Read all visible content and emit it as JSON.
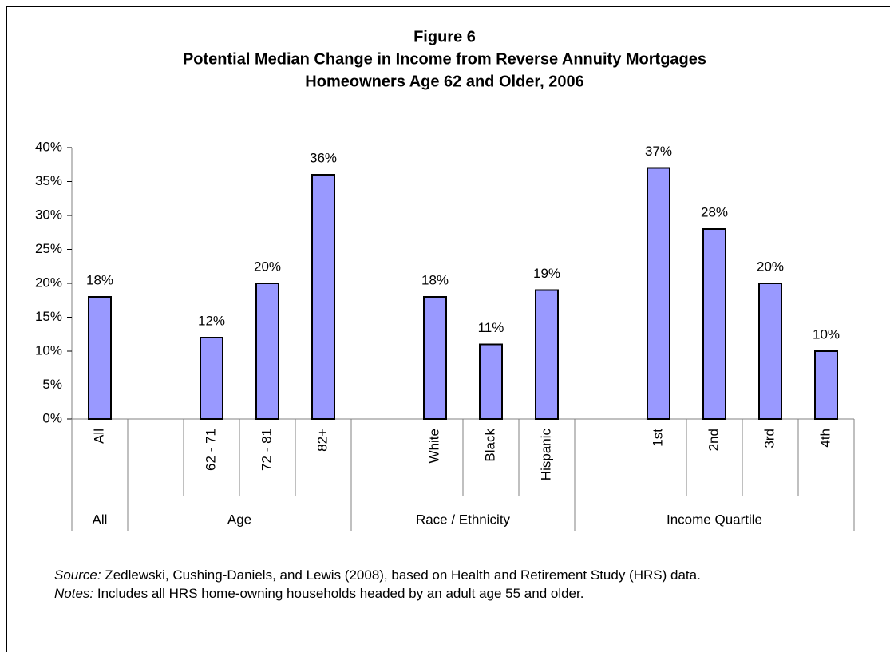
{
  "chart_data": {
    "type": "bar",
    "title": "Figure 6",
    "subtitle": [
      "Potential Median Change in Income from Reverse Annuity Mortgages",
      "Homeowners Age 62 and Older, 2006"
    ],
    "categories": [
      "All",
      null,
      "62 - 71",
      "72 - 81",
      "82+",
      null,
      "White",
      "Black",
      "Hispanic",
      null,
      "1st",
      "2nd",
      "3rd",
      "4th"
    ],
    "values": [
      18,
      null,
      12,
      20,
      36,
      null,
      18,
      11,
      19,
      null,
      37,
      28,
      20,
      10
    ],
    "value_labels": [
      "18%",
      null,
      "12%",
      "20%",
      "36%",
      null,
      "18%",
      "11%",
      "19%",
      null,
      "37%",
      "28%",
      "20%",
      "10%"
    ],
    "groups": [
      {
        "name": "All",
        "count": 1
      },
      {
        "name": "Age",
        "count": 4
      },
      {
        "name": "Race / Ethnicity",
        "count": 4
      },
      {
        "name": "Income Quartile",
        "count": 5
      }
    ],
    "color": "#9999ff",
    "ylim": [
      0,
      40
    ],
    "yticks": [
      {
        "value": 0,
        "label": "0%"
      },
      {
        "value": 5,
        "label": "5%"
      },
      {
        "value": 10,
        "label": "10%"
      },
      {
        "value": 15,
        "label": "15%"
      },
      {
        "value": 20,
        "label": "20%"
      },
      {
        "value": 25,
        "label": "25%"
      },
      {
        "value": 30,
        "label": "30%"
      },
      {
        "value": 35,
        "label": "35%"
      },
      {
        "value": 40,
        "label": "40%"
      }
    ],
    "grid": false,
    "notes": [
      {
        "label": "Source:",
        "text": " Zedlewski, Cushing-Daniels, and Lewis (2008), based on Health and Retirement Study (HRS) data."
      },
      {
        "label": "Notes:",
        "text": " Includes all HRS home-owning households headed by an adult age 55 and older."
      }
    ]
  }
}
